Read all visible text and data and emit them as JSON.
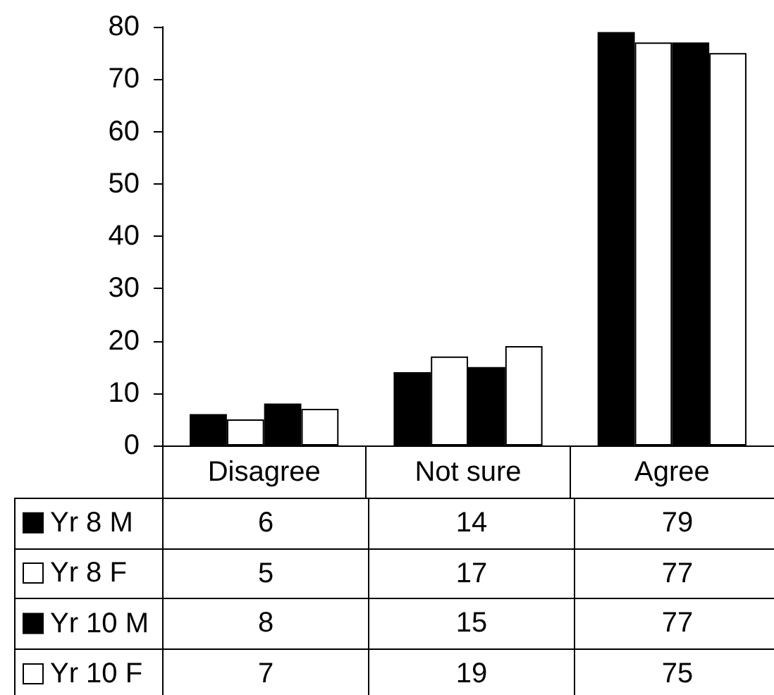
{
  "chart_data": {
    "type": "bar",
    "categories": [
      "Disagree",
      "Not sure",
      "Agree"
    ],
    "series": [
      {
        "name": "Yr 8 M",
        "color": "#000000",
        "values": [
          6,
          14,
          79
        ]
      },
      {
        "name": "Yr 8 F",
        "color": "#ffffff",
        "values": [
          5,
          17,
          77
        ]
      },
      {
        "name": "Yr 10 M",
        "color": "#000000",
        "values": [
          8,
          15,
          77
        ]
      },
      {
        "name": "Yr 10 F",
        "color": "#ffffff",
        "values": [
          7,
          19,
          75
        ]
      }
    ],
    "ylim": [
      0,
      80
    ],
    "yticks": [
      0,
      10,
      20,
      30,
      40,
      50,
      60,
      70,
      80
    ],
    "data_labels": true,
    "legend": "bottom left"
  }
}
